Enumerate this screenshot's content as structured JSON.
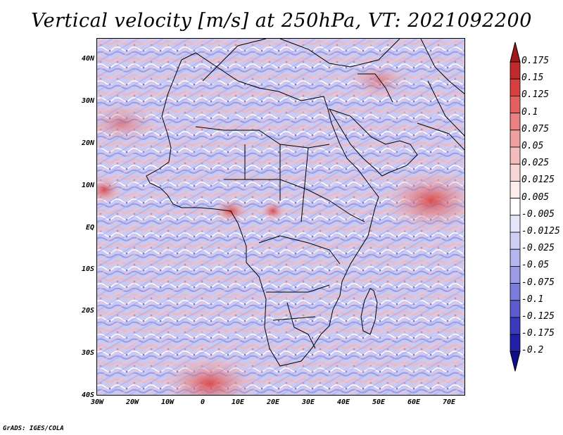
{
  "title": "Vertical velocity [m/s] at 250hPa, VT: 2021092200",
  "credit": "GrADS: IGES/COLA",
  "lat_labels": [
    "40N",
    "30N",
    "20N",
    "10N",
    "EQ",
    "10S",
    "20S",
    "30S",
    "40S"
  ],
  "lon_labels": [
    "30W",
    "20W",
    "10W",
    "0",
    "10E",
    "20E",
    "30E",
    "40E",
    "50E",
    "60E",
    "70E"
  ],
  "colorbar": {
    "levels": [
      "0.175",
      "0.15",
      "0.125",
      "0.1",
      "0.075",
      "0.05",
      "0.025",
      "0.0125",
      "0.005",
      "-0.005",
      "-0.0125",
      "-0.025",
      "-0.05",
      "-0.075",
      "-0.1",
      "-0.125",
      "-0.175",
      "-0.2"
    ],
    "colors": [
      "#a01818",
      "#c02a2a",
      "#d84040",
      "#e46060",
      "#ec8080",
      "#f0a0a0",
      "#f4bcbc",
      "#f8d6d6",
      "#fcecec",
      "#ffffff",
      "#e6e6fa",
      "#cfcff4",
      "#b6b6ee",
      "#9a9ae6",
      "#7c7cdc",
      "#5c5cce",
      "#3a3abc",
      "#2020a8",
      "#10108c"
    ]
  }
}
